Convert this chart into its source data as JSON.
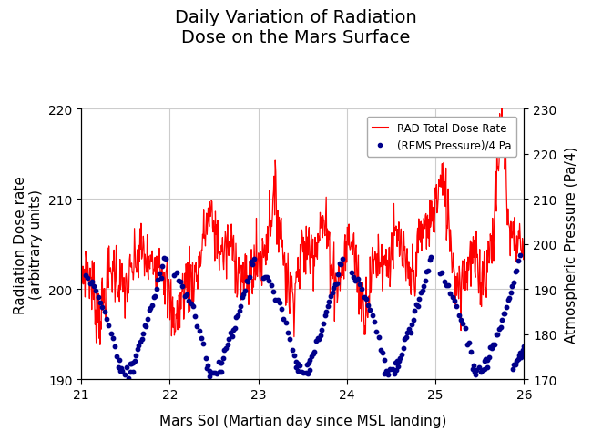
{
  "title": "Daily Variation of Radiation\nDose on the Mars Surface",
  "xlabel": "Mars Sol (Martian day since MSL landing)",
  "ylabel_left": "Radiation Dose rate\n(arbitrary units)",
  "ylabel_right": "Atmospheric Pressure (Pa/4)",
  "xlim": [
    21,
    26
  ],
  "ylim_left": [
    190,
    220
  ],
  "ylim_right": [
    170,
    230
  ],
  "yticks_left": [
    190,
    200,
    210,
    220
  ],
  "yticks_right": [
    170,
    180,
    190,
    200,
    210,
    220,
    230
  ],
  "xticks": [
    21,
    22,
    23,
    24,
    25,
    26
  ],
  "rad_color": "#FF0000",
  "pressure_color": "#00008B",
  "legend_rad": "RAD Total Dose Rate",
  "legend_pressure": "(REMS Pressure)/4 Pa",
  "background_color": "#FFFFFF",
  "grid_color": "#CCCCCC",
  "title_fontsize": 14,
  "axis_label_fontsize": 11,
  "tick_fontsize": 10
}
